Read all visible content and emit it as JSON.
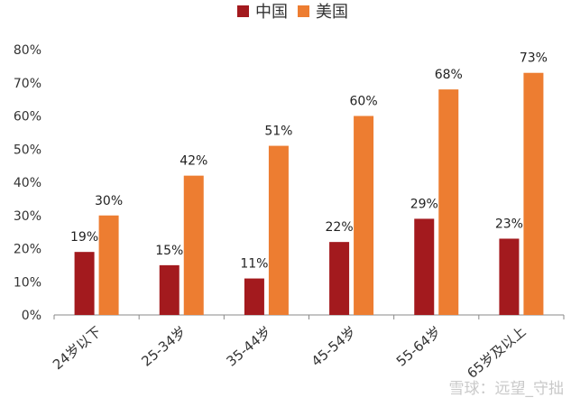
{
  "chart_data": {
    "type": "bar",
    "categories": [
      "24岁以下",
      "25-34岁",
      "35-44岁",
      "45-54岁",
      "55-64岁",
      "65岁及以上"
    ],
    "series": [
      {
        "name": "中国",
        "values": [
          19,
          15,
          11,
          22,
          29,
          23
        ],
        "labels": [
          "19%",
          "15%",
          "11%",
          "22%",
          "29%",
          "23%"
        ],
        "color": "#A31A1E"
      },
      {
        "name": "美国",
        "values": [
          30,
          42,
          51,
          60,
          68,
          73
        ],
        "labels": [
          "30%",
          "42%",
          "51%",
          "60%",
          "68%",
          "73%"
        ],
        "color": "#ED7D31"
      }
    ],
    "ylim": [
      0,
      80
    ],
    "yticks": [
      0,
      10,
      20,
      30,
      40,
      50,
      60,
      70,
      80
    ],
    "ytick_labels": [
      "0%",
      "10%",
      "20%",
      "30%",
      "40%",
      "50%",
      "60%",
      "70%",
      "80%"
    ],
    "legend_position": "top-center",
    "grid": false
  },
  "watermark": "雪球：远望_守拙"
}
